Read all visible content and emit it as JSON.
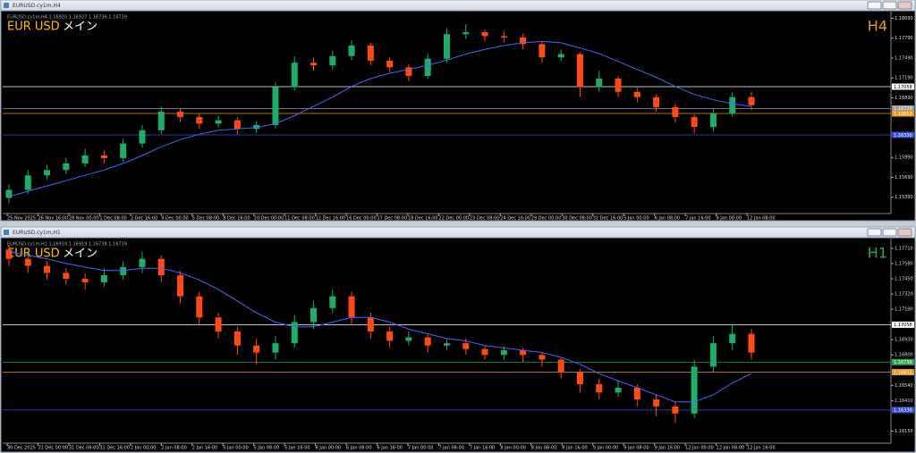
{
  "windows": [
    {
      "title": "EURUSD.cy1m,H4"
    },
    {
      "title": "EURUSD.cy1m,H1"
    }
  ],
  "chart_data": [
    {
      "type": "candlestick",
      "info": "EURUSD.cy1m,H4  1.16920 1.16927 1.16736 1.16739",
      "symbol": "EUR USD",
      "tag": "メイン",
      "timeframe": "H4",
      "timeframe_color": "#e89a1e",
      "up_color": "#1fae6a",
      "down_color": "#ff4a12",
      "ylim": [
        1.1513,
        1.1815
      ],
      "yticks": [
        {
          "value": 1.1809,
          "label": "1.18090"
        },
        {
          "value": 1.1779,
          "label": "1.17790"
        },
        {
          "value": 1.1749,
          "label": "1.17490"
        },
        {
          "value": 1.1719,
          "label": "1.17190"
        },
        {
          "value": 1.1689,
          "label": "1.16890"
        },
        {
          "value": 1.1599,
          "label": "1.15990"
        },
        {
          "value": 1.1569,
          "label": "1.15690"
        },
        {
          "value": 1.1539,
          "label": "1.15390"
        }
      ],
      "levels": [
        {
          "value": 1.17058,
          "label": "1.17058",
          "color": "#ffffff"
        },
        {
          "value": 1.16729,
          "label": "1.16729",
          "color": "#9a9a9a"
        },
        {
          "value": 1.16653,
          "label": "1.16653",
          "color": "#e89a1e"
        },
        {
          "value": 1.1633,
          "label": "1.16330",
          "color": "#3a4fd6"
        }
      ],
      "x_labels": [
        "25 Nov 2025",
        "26 Nov 16:00",
        "28 Nov 00:00",
        "1 Dec 08:00",
        "2 Dec 16:00",
        "4 Dec 00:00",
        "5 Dec 08:00",
        "8 Dec 16:00",
        "10 Dec 00:00",
        "11 Dec 08:00",
        "12 Dec 16:00",
        "16 Dec 00:00",
        "17 Dec 08:00",
        "18 Dec 16:00",
        "22 Dec 00:00",
        "23 Dec 08:00",
        "24 Dec 16:00",
        "29 Dec 00:00",
        "30 Dec 08:00",
        "31 Dec 16:00",
        "5 Jan 00:00",
        "6 Jan 08:00",
        "7 Jan 16:00",
        "9 Jan 00:00",
        "12 Jan 08:00"
      ],
      "candles": [
        [
          1.1538,
          1.1558,
          1.153,
          1.155
        ],
        [
          1.155,
          1.158,
          1.1544,
          1.1572
        ],
        [
          1.1572,
          1.1588,
          1.1565,
          1.158
        ],
        [
          1.158,
          1.1598,
          1.1574,
          1.159
        ],
        [
          1.159,
          1.1612,
          1.1585,
          1.1602
        ],
        [
          1.1602,
          1.161,
          1.159,
          1.1598
        ],
        [
          1.1598,
          1.1628,
          1.1592,
          1.162
        ],
        [
          1.162,
          1.1648,
          1.1614,
          1.164
        ],
        [
          1.164,
          1.1676,
          1.1634,
          1.1668
        ],
        [
          1.1668,
          1.1674,
          1.1652,
          1.166
        ],
        [
          1.166,
          1.1666,
          1.1642,
          1.165
        ],
        [
          1.165,
          1.1662,
          1.1644,
          1.1655
        ],
        [
          1.1655,
          1.166,
          1.1634,
          1.1642
        ],
        [
          1.1642,
          1.1654,
          1.1636,
          1.1648
        ],
        [
          1.1648,
          1.1712,
          1.1642,
          1.1705
        ],
        [
          1.1705,
          1.1752,
          1.17,
          1.1742
        ],
        [
          1.1742,
          1.175,
          1.173,
          1.1738
        ],
        [
          1.1738,
          1.176,
          1.1732,
          1.1752
        ],
        [
          1.1752,
          1.1776,
          1.1746,
          1.1768
        ],
        [
          1.1768,
          1.1772,
          1.1738,
          1.1745
        ],
        [
          1.1745,
          1.175,
          1.1728,
          1.1735
        ],
        [
          1.1735,
          1.174,
          1.1714,
          1.1722
        ],
        [
          1.1722,
          1.1756,
          1.1718,
          1.1748
        ],
        [
          1.1748,
          1.1794,
          1.1742,
          1.1785
        ],
        [
          1.1785,
          1.18,
          1.1778,
          1.1788
        ],
        [
          1.1788,
          1.1792,
          1.1774,
          1.1782
        ],
        [
          1.1782,
          1.179,
          1.1772,
          1.178
        ],
        [
          1.178,
          1.1786,
          1.1762,
          1.177
        ],
        [
          1.177,
          1.1774,
          1.1742,
          1.175
        ],
        [
          1.175,
          1.1762,
          1.1744,
          1.1755
        ],
        [
          1.1755,
          1.1758,
          1.169,
          1.1705
        ],
        [
          1.1705,
          1.173,
          1.1698,
          1.1718
        ],
        [
          1.1718,
          1.1722,
          1.169,
          1.1698
        ],
        [
          1.1698,
          1.1704,
          1.1682,
          1.169
        ],
        [
          1.169,
          1.1694,
          1.1668,
          1.1675
        ],
        [
          1.1675,
          1.168,
          1.1652,
          1.166
        ],
        [
          1.166,
          1.1664,
          1.1635,
          1.1645
        ],
        [
          1.1645,
          1.1672,
          1.1638,
          1.1665
        ],
        [
          1.1665,
          1.1698,
          1.166,
          1.169
        ],
        [
          1.169,
          1.1698,
          1.167,
          1.1678
        ]
      ],
      "ma": {
        "color": "#4a64ff",
        "values": [
          1.154,
          1.1548,
          1.1556,
          1.1564,
          1.1572,
          1.158,
          1.159,
          1.1602,
          1.1615,
          1.1626,
          1.1634,
          1.164,
          1.1642,
          1.1644,
          1.165,
          1.1662,
          1.1676,
          1.169,
          1.1706,
          1.1718,
          1.1726,
          1.1732,
          1.1738,
          1.1746,
          1.1755,
          1.1762,
          1.1768,
          1.1772,
          1.1774,
          1.1772,
          1.1764,
          1.1756,
          1.1744,
          1.1732,
          1.172,
          1.1706,
          1.1694,
          1.1686,
          1.168,
          1.1676
        ]
      }
    },
    {
      "type": "candlestick",
      "info": "EURUSD.cy1m,H1  1.16919 1.16919 1.16738 1.16739",
      "symbol": "EUR USD",
      "tag": "メイン",
      "timeframe": "H1",
      "timeframe_color": "#2ea84a",
      "up_color": "#1fae6a",
      "down_color": "#ff4a12",
      "ylim": [
        1.1607,
        1.1777
      ],
      "yticks": [
        {
          "value": 1.1771,
          "label": "1.17710"
        },
        {
          "value": 1.1758,
          "label": "1.17580"
        },
        {
          "value": 1.1745,
          "label": "1.17450"
        },
        {
          "value": 1.1732,
          "label": "1.17320"
        },
        {
          "value": 1.1719,
          "label": "1.17190"
        },
        {
          "value": 1.1693,
          "label": "1.16930"
        },
        {
          "value": 1.168,
          "label": "1.16800"
        },
        {
          "value": 1.1654,
          "label": "1.16540"
        },
        {
          "value": 1.1641,
          "label": "1.16410"
        },
        {
          "value": 1.1615,
          "label": "1.16150"
        }
      ],
      "levels": [
        {
          "value": 1.17058,
          "label": "1.17058",
          "color": "#ffffff"
        },
        {
          "value": 1.16739,
          "label": "1.16739",
          "color": "#2ea84a"
        },
        {
          "value": 1.16653,
          "label": "1.16653",
          "color": "#e89a1e"
        },
        {
          "value": 1.1633,
          "label": "1.16330",
          "color": "#3a4fd6"
        }
      ],
      "x_labels": [
        "30 Dec 2025",
        "31 Dec 00:00",
        "31 Dec 08:00",
        "31 Dec 16:00",
        "2 Jan 00:00",
        "2 Jan 08:00",
        "2 Jan 16:00",
        "5 Jan 00:00",
        "5 Jan 08:00",
        "5 Jan 16:00",
        "6 Jan 00:00",
        "6 Jan 08:00",
        "6 Jan 16:00",
        "7 Jan 00:00",
        "7 Jan 08:00",
        "7 Jan 16:00",
        "8 Jan 00:00",
        "8 Jan 08:00",
        "8 Jan 16:00",
        "9 Jan 00:00",
        "9 Jan 08:00",
        "9 Jan 16:00",
        "12 Jan 00:00",
        "12 Jan 08:00",
        "12 Jan 16:00"
      ],
      "candles": [
        [
          1.177,
          1.1774,
          1.1756,
          1.1762
        ],
        [
          1.1762,
          1.1766,
          1.175,
          1.1756
        ],
        [
          1.1756,
          1.176,
          1.1744,
          1.175
        ],
        [
          1.175,
          1.1754,
          1.174,
          1.1745
        ],
        [
          1.1745,
          1.175,
          1.1736,
          1.1742
        ],
        [
          1.1742,
          1.1754,
          1.1738,
          1.1748
        ],
        [
          1.1748,
          1.176,
          1.1744,
          1.1755
        ],
        [
          1.1755,
          1.1768,
          1.175,
          1.1762
        ],
        [
          1.1762,
          1.1765,
          1.1742,
          1.1748
        ],
        [
          1.1748,
          1.1752,
          1.1724,
          1.173
        ],
        [
          1.173,
          1.1734,
          1.1706,
          1.1712
        ],
        [
          1.1712,
          1.1716,
          1.1694,
          1.17
        ],
        [
          1.17,
          1.1704,
          1.168,
          1.1688
        ],
        [
          1.1688,
          1.1694,
          1.1672,
          1.1682
        ],
        [
          1.1682,
          1.1696,
          1.1676,
          1.169
        ],
        [
          1.169,
          1.1714,
          1.1686,
          1.1708
        ],
        [
          1.1708,
          1.1726,
          1.1702,
          1.172
        ],
        [
          1.172,
          1.1736,
          1.1716,
          1.173
        ],
        [
          1.173,
          1.1734,
          1.1706,
          1.1712
        ],
        [
          1.1712,
          1.1716,
          1.1694,
          1.17
        ],
        [
          1.17,
          1.1704,
          1.1686,
          1.1692
        ],
        [
          1.1692,
          1.17,
          1.1688,
          1.1695
        ],
        [
          1.1695,
          1.1698,
          1.1682,
          1.1688
        ],
        [
          1.1688,
          1.1694,
          1.1684,
          1.169
        ],
        [
          1.169,
          1.1694,
          1.168,
          1.1685
        ],
        [
          1.1685,
          1.1688,
          1.1676,
          1.168
        ],
        [
          1.168,
          1.1688,
          1.1676,
          1.1684
        ],
        [
          1.1684,
          1.1686,
          1.1674,
          1.168
        ],
        [
          1.168,
          1.1682,
          1.167,
          1.1676
        ],
        [
          1.1676,
          1.1678,
          1.166,
          1.1665
        ],
        [
          1.1665,
          1.1668,
          1.1648,
          1.1655
        ],
        [
          1.1655,
          1.166,
          1.1642,
          1.1648
        ],
        [
          1.1648,
          1.1658,
          1.1644,
          1.1652
        ],
        [
          1.1652,
          1.1655,
          1.1636,
          1.1642
        ],
        [
          1.1642,
          1.1646,
          1.1628,
          1.1636
        ],
        [
          1.1636,
          1.164,
          1.1622,
          1.163
        ],
        [
          1.163,
          1.1676,
          1.1626,
          1.167
        ],
        [
          1.167,
          1.1696,
          1.1665,
          1.169
        ],
        [
          1.169,
          1.1706,
          1.1684,
          1.1698
        ],
        [
          1.1698,
          1.1702,
          1.1676,
          1.1682
        ]
      ],
      "ma": {
        "color": "#4a64ff",
        "values": [
          1.1768,
          1.1765,
          1.1762,
          1.1758,
          1.1755,
          1.1752,
          1.1752,
          1.1754,
          1.1754,
          1.175,
          1.1744,
          1.1736,
          1.1726,
          1.1716,
          1.1708,
          1.1704,
          1.1704,
          1.1708,
          1.1712,
          1.1712,
          1.1708,
          1.1702,
          1.1698,
          1.1694,
          1.1692,
          1.1688,
          1.1686,
          1.1684,
          1.1682,
          1.1678,
          1.1672,
          1.1664,
          1.1658,
          1.1652,
          1.1646,
          1.164,
          1.164,
          1.1646,
          1.1656,
          1.1664
        ]
      }
    }
  ]
}
